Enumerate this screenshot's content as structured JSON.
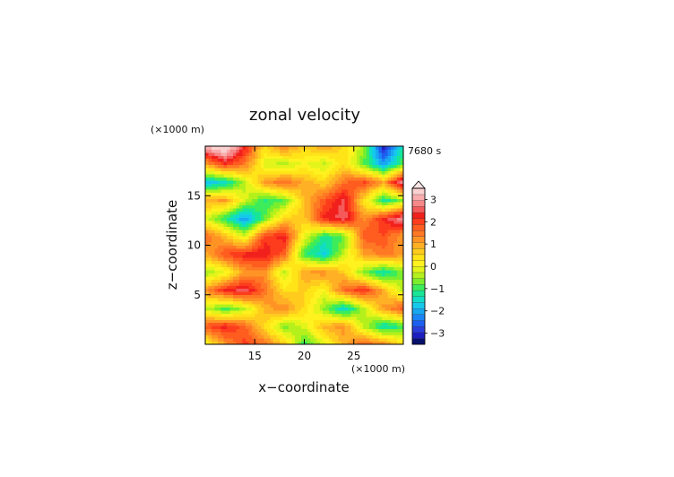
{
  "chart_data": {
    "type": "heatmap",
    "title": "zonal velocity",
    "xlabel": "x−coordinate",
    "ylabel": "z−coordinate",
    "x_unit": "(×1000 m)",
    "y_unit": "(×1000 m)",
    "time_label": "7680 s",
    "xlim": [
      10,
      30
    ],
    "ylim": [
      0,
      20
    ],
    "x_ticks": [
      "15",
      "20",
      "25"
    ],
    "y_ticks": [
      "5",
      "10",
      "15"
    ],
    "colorbar": {
      "levels": [
        -3.5,
        -3.25,
        -3,
        -2.75,
        -2.5,
        -2.25,
        -2,
        -1.75,
        -1.5,
        -1.25,
        -1,
        -0.75,
        -0.5,
        -0.25,
        0,
        0.25,
        0.5,
        0.75,
        1,
        1.25,
        1.5,
        1.75,
        2,
        2.25,
        2.5,
        2.75,
        3,
        3.25,
        3.5
      ],
      "tick_labels": [
        "3",
        "2",
        "1",
        "0",
        "−1",
        "−2",
        "−3"
      ],
      "tick_values": [
        3,
        2,
        1,
        0,
        -1,
        -2,
        -3
      ],
      "colors": [
        "#08106e",
        "#1c1ec0",
        "#2a3cdc",
        "#1c5ef0",
        "#1a84f6",
        "#18a8f2",
        "#16c8ec",
        "#10dcc8",
        "#18e696",
        "#3cec5a",
        "#7aee2c",
        "#b4f01c",
        "#e2f41a",
        "#fff21e",
        "#ffe418",
        "#ffcc1e",
        "#ffb024",
        "#ff9424",
        "#ff7824",
        "#ff5c20",
        "#fc3c1c",
        "#f2201c",
        "#f45a5a",
        "#f68888",
        "#f8acac",
        "#fad0d0"
      ]
    },
    "field": {
      "ny": 12,
      "nx": 11,
      "values": [
        [
          -0.3,
          0.8,
          1.6,
          1.2,
          0.4,
          -1.2,
          -0.4,
          0.6,
          1.4,
          1.0,
          0.2
        ],
        [
          1.4,
          1.9,
          1.3,
          0.2,
          -0.9,
          -0.4,
          0.6,
          0.9,
          -0.6,
          -1.6,
          -1.2
        ],
        [
          -0.5,
          -1.2,
          -0.6,
          0.6,
          1.0,
          0.2,
          -0.8,
          -1.8,
          -0.6,
          0.8,
          1.4
        ],
        [
          0.9,
          1.8,
          2.2,
          1.2,
          0.1,
          0.3,
          -0.2,
          1.3,
          1.8,
          0.6,
          -0.6
        ],
        [
          -0.8,
          -0.3,
          0.8,
          0.9,
          -0.6,
          0.8,
          0.9,
          0.4,
          -0.9,
          -1.6,
          -0.9
        ],
        [
          0.6,
          1.5,
          1.9,
          2.0,
          1.3,
          -1.2,
          -1.8,
          -0.5,
          0.7,
          1.1,
          0.9
        ],
        [
          1.3,
          0.5,
          -0.4,
          1.6,
          1.9,
          -0.3,
          -1.4,
          -1.0,
          1.4,
          1.5,
          0.7
        ],
        [
          -0.4,
          -1.3,
          -2.3,
          -1.0,
          0.3,
          0.4,
          1.8,
          2.2,
          0.9,
          1.8,
          2.6
        ],
        [
          0.7,
          0.8,
          -0.4,
          -1.3,
          -1.0,
          0.5,
          1.4,
          2.1,
          0.1,
          -1.5,
          -0.8
        ],
        [
          -2.0,
          -1.7,
          -0.6,
          0.8,
          1.3,
          0.7,
          0.3,
          1.2,
          1.6,
          0.8,
          2.6
        ],
        [
          0.7,
          1.7,
          1.1,
          -0.4,
          -0.7,
          -0.2,
          -0.6,
          0.2,
          -1.0,
          -2.2,
          -1.0
        ],
        [
          2.8,
          3.3,
          1.9,
          0.2,
          1.1,
          0.3,
          0.8,
          0.2,
          -0.7,
          -3.2,
          -1.4
        ]
      ]
    }
  }
}
